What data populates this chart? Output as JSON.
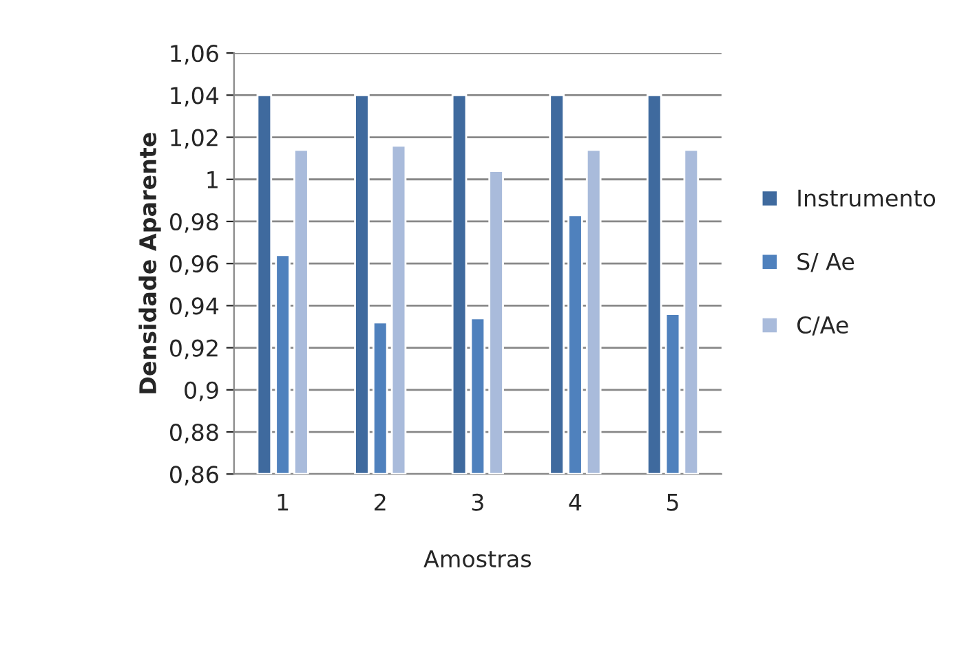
{
  "chart_data": {
    "type": "bar",
    "xlabel": "Amostras",
    "ylabel": "Densidade Aparente",
    "categories": [
      "1",
      "2",
      "3",
      "4",
      "5"
    ],
    "series": [
      {
        "name": "Instrumento",
        "color": "#3f6a9e",
        "values": [
          1.04,
          1.04,
          1.04,
          1.04,
          1.04
        ]
      },
      {
        "name": "S/ Ae",
        "color": "#4f81bd",
        "values": [
          0.964,
          0.932,
          0.934,
          0.983,
          0.936
        ]
      },
      {
        "name": "C/Ae",
        "color": "#a9bbdb",
        "values": [
          1.014,
          1.016,
          1.004,
          1.014,
          1.014
        ]
      }
    ],
    "ylim": [
      0.86,
      1.06
    ],
    "yticks": [
      {
        "value": 0.86,
        "label": "0,86"
      },
      {
        "value": 0.88,
        "label": "0,88"
      },
      {
        "value": 0.9,
        "label": "0,9"
      },
      {
        "value": 0.92,
        "label": "0,92"
      },
      {
        "value": 0.94,
        "label": "0,94"
      },
      {
        "value": 0.96,
        "label": "0,96"
      },
      {
        "value": 0.98,
        "label": "0,98"
      },
      {
        "value": 1,
        "label": "1"
      },
      {
        "value": 1.02,
        "label": "1,02"
      },
      {
        "value": 1.04,
        "label": "1,04"
      },
      {
        "value": 1.06,
        "label": "1,06"
      }
    ],
    "grid": "y",
    "legend": "right"
  }
}
